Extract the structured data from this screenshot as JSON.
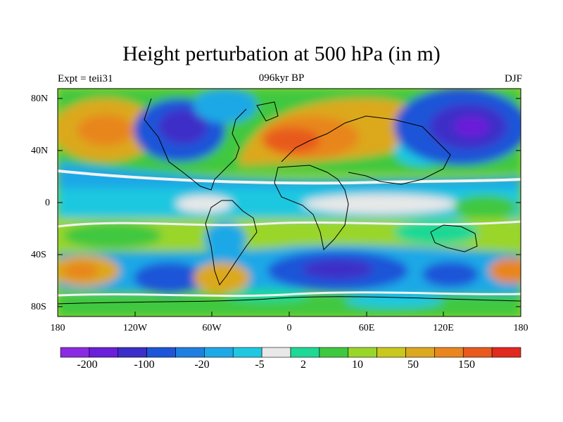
{
  "title": "Height perturbation at 500 hPa (in m)",
  "left_label": "Expt = teii31",
  "center_label": "096kyr BP",
  "right_label": "DJF",
  "lat_ticks": [
    "80N",
    "40N",
    "0",
    "40S",
    "80S"
  ],
  "lon_ticks": [
    "180",
    "120W",
    "60W",
    "0",
    "60E",
    "120E",
    "180"
  ],
  "colorbar_labels": [
    "-200",
    "-100",
    "-20",
    "-5",
    "2",
    "10",
    "50",
    "150"
  ],
  "colorbar_colors": [
    "#8a2be2",
    "#6a1fd8",
    "#3c2fc8",
    "#1f55d8",
    "#1f7fe0",
    "#1fa8e6",
    "#1fc8e0",
    "#e8e8e8",
    "#1fd895",
    "#40c840",
    "#9ad52a",
    "#c8c81f",
    "#dca81f",
    "#e8861f",
    "#e85a1f",
    "#e02a1f"
  ],
  "map_regions": [
    {
      "name": "subtropical-band-north",
      "level": "-20"
    },
    {
      "name": "north-atlantic-eurasia-high",
      "level": "150"
    },
    {
      "name": "north-america-low",
      "level": "-100"
    },
    {
      "name": "north-pacific-asia-low",
      "level": "-200"
    },
    {
      "name": "north-pacific-high",
      "level": "50"
    },
    {
      "name": "tropical-band",
      "level": "-5"
    },
    {
      "name": "southern-midlatitude-low",
      "level": "-100"
    },
    {
      "name": "south-pacific-high",
      "level": "50"
    },
    {
      "name": "south-atlantic-high",
      "level": "50"
    },
    {
      "name": "antarctic-band",
      "level": "10"
    }
  ]
}
